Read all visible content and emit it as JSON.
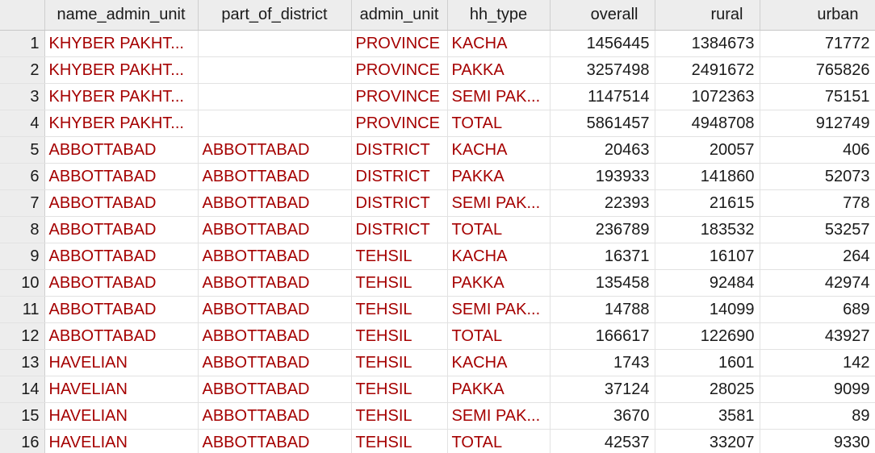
{
  "columns": {
    "name_admin_unit": "name_admin_unit",
    "part_of_district": "part_of_district",
    "admin_unit": "admin_unit",
    "hh_type": "hh_type",
    "overall": "overall",
    "rural": "rural",
    "urban": "urban"
  },
  "rows": [
    {
      "n": "1",
      "name_admin_unit": "KHYBER PAKHT...",
      "part_of_district": "",
      "admin_unit": "PROVINCE",
      "hh_type": "KACHA",
      "overall": "1456445",
      "rural": "1384673",
      "urban": "71772"
    },
    {
      "n": "2",
      "name_admin_unit": "KHYBER PAKHT...",
      "part_of_district": "",
      "admin_unit": "PROVINCE",
      "hh_type": "PAKKA",
      "overall": "3257498",
      "rural": "2491672",
      "urban": "765826"
    },
    {
      "n": "3",
      "name_admin_unit": "KHYBER PAKHT...",
      "part_of_district": "",
      "admin_unit": "PROVINCE",
      "hh_type": "SEMI PAK...",
      "overall": "1147514",
      "rural": "1072363",
      "urban": "75151"
    },
    {
      "n": "4",
      "name_admin_unit": "KHYBER PAKHT...",
      "part_of_district": "",
      "admin_unit": "PROVINCE",
      "hh_type": "TOTAL",
      "overall": "5861457",
      "rural": "4948708",
      "urban": "912749"
    },
    {
      "n": "5",
      "name_admin_unit": "ABBOTTABAD",
      "part_of_district": "ABBOTTABAD",
      "admin_unit": "DISTRICT",
      "hh_type": "KACHA",
      "overall": "20463",
      "rural": "20057",
      "urban": "406"
    },
    {
      "n": "6",
      "name_admin_unit": "ABBOTTABAD",
      "part_of_district": "ABBOTTABAD",
      "admin_unit": "DISTRICT",
      "hh_type": "PAKKA",
      "overall": "193933",
      "rural": "141860",
      "urban": "52073"
    },
    {
      "n": "7",
      "name_admin_unit": "ABBOTTABAD",
      "part_of_district": "ABBOTTABAD",
      "admin_unit": "DISTRICT",
      "hh_type": "SEMI PAK...",
      "overall": "22393",
      "rural": "21615",
      "urban": "778"
    },
    {
      "n": "8",
      "name_admin_unit": "ABBOTTABAD",
      "part_of_district": "ABBOTTABAD",
      "admin_unit": "DISTRICT",
      "hh_type": "TOTAL",
      "overall": "236789",
      "rural": "183532",
      "urban": "53257"
    },
    {
      "n": "9",
      "name_admin_unit": "ABBOTTABAD",
      "part_of_district": "ABBOTTABAD",
      "admin_unit": "TEHSIL",
      "hh_type": "KACHA",
      "overall": "16371",
      "rural": "16107",
      "urban": "264"
    },
    {
      "n": "10",
      "name_admin_unit": "ABBOTTABAD",
      "part_of_district": "ABBOTTABAD",
      "admin_unit": "TEHSIL",
      "hh_type": "PAKKA",
      "overall": "135458",
      "rural": "92484",
      "urban": "42974"
    },
    {
      "n": "11",
      "name_admin_unit": "ABBOTTABAD",
      "part_of_district": "ABBOTTABAD",
      "admin_unit": "TEHSIL",
      "hh_type": "SEMI PAK...",
      "overall": "14788",
      "rural": "14099",
      "urban": "689"
    },
    {
      "n": "12",
      "name_admin_unit": "ABBOTTABAD",
      "part_of_district": "ABBOTTABAD",
      "admin_unit": "TEHSIL",
      "hh_type": "TOTAL",
      "overall": "166617",
      "rural": "122690",
      "urban": "43927"
    },
    {
      "n": "13",
      "name_admin_unit": "HAVELIAN",
      "part_of_district": "ABBOTTABAD",
      "admin_unit": "TEHSIL",
      "hh_type": "KACHA",
      "overall": "1743",
      "rural": "1601",
      "urban": "142"
    },
    {
      "n": "14",
      "name_admin_unit": "HAVELIAN",
      "part_of_district": "ABBOTTABAD",
      "admin_unit": "TEHSIL",
      "hh_type": "PAKKA",
      "overall": "37124",
      "rural": "28025",
      "urban": "9099"
    },
    {
      "n": "15",
      "name_admin_unit": "HAVELIAN",
      "part_of_district": "ABBOTTABAD",
      "admin_unit": "TEHSIL",
      "hh_type": "SEMI PAK...",
      "overall": "3670",
      "rural": "3581",
      "urban": "89"
    },
    {
      "n": "16",
      "name_admin_unit": "HAVELIAN",
      "part_of_district": "ABBOTTABAD",
      "admin_unit": "TEHSIL",
      "hh_type": "TOTAL",
      "overall": "42537",
      "rural": "33207",
      "urban": "9330"
    }
  ],
  "colors": {
    "text_value": "#a50000",
    "numeric_value": "#1a1a1a",
    "header_bg": "#ededed",
    "gridline": "#e2e2e2"
  }
}
